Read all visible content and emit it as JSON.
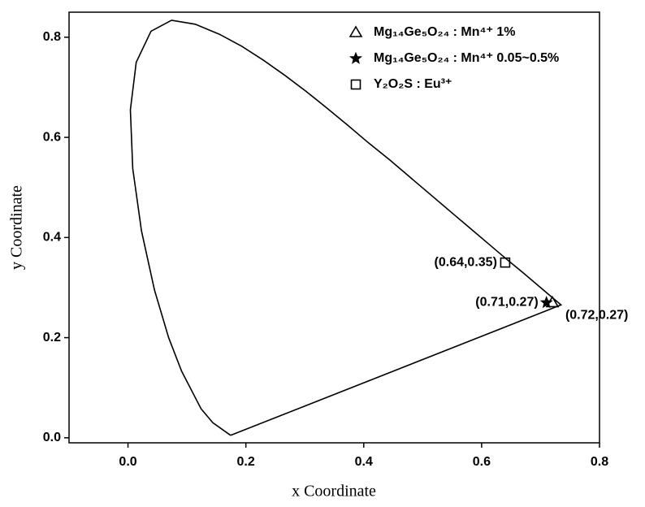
{
  "chart_data": {
    "type": "scatter",
    "xlabel": "x Coordinate",
    "ylabel": "y Coordinate",
    "xlim": [
      -0.1,
      0.8
    ],
    "ylim": [
      -0.01,
      0.85
    ],
    "xticks": [
      {
        "value": 0,
        "label": "0.0"
      },
      0.2,
      0.4,
      0.6,
      0.8
    ],
    "yticks": [
      {
        "value": 0,
        "label": "0.0"
      },
      0.2,
      0.4,
      0.6,
      0.8
    ],
    "legend": "top-right",
    "series": [
      {
        "type": "line",
        "color": "#000000",
        "x": [
          0.1741,
          0.144,
          0.124,
          0.091,
          0.069,
          0.045,
          0.023,
          0.008,
          0.004,
          0.014,
          0.039,
          0.074,
          0.114,
          0.155,
          0.193,
          0.23,
          0.266,
          0.302,
          0.337,
          0.373,
          0.408,
          0.444,
          0.479,
          0.512,
          0.547,
          0.58,
          0.612,
          0.642,
          0.67,
          0.692,
          0.713,
          0.7347,
          0.1741
        ],
        "y": [
          0.005,
          0.03,
          0.058,
          0.133,
          0.2,
          0.295,
          0.413,
          0.538,
          0.655,
          0.75,
          0.812,
          0.834,
          0.826,
          0.806,
          0.782,
          0.754,
          0.724,
          0.692,
          0.659,
          0.624,
          0.589,
          0.555,
          0.52,
          0.487,
          0.452,
          0.419,
          0.387,
          0.357,
          0.33,
          0.308,
          0.287,
          0.2653,
          0.005
        ]
      },
      {
        "name": "Mg₁₄Ge₅O₂₄ : Mn⁴⁺ 1%",
        "marker": "triangle",
        "color": "#000000",
        "x": [
          0.72
        ],
        "y": [
          0.27
        ],
        "value_labels": [
          "(0.72,0.27)"
        ]
      },
      {
        "name": "Mg₁₄Ge₅O₂₄ : Mn⁴⁺ 0.05~0.5%",
        "marker": "star",
        "color": "#000000",
        "x": [
          0.71
        ],
        "y": [
          0.27
        ],
        "value_labels": [
          "(0.71,0.27)"
        ]
      },
      {
        "name": "Y₂O₂S : Eu³⁺",
        "marker": "square",
        "color": "#000000",
        "x": [
          0.64
        ],
        "y": [
          0.35
        ],
        "value_labels": [
          "(0.64,0.35)"
        ]
      }
    ]
  }
}
